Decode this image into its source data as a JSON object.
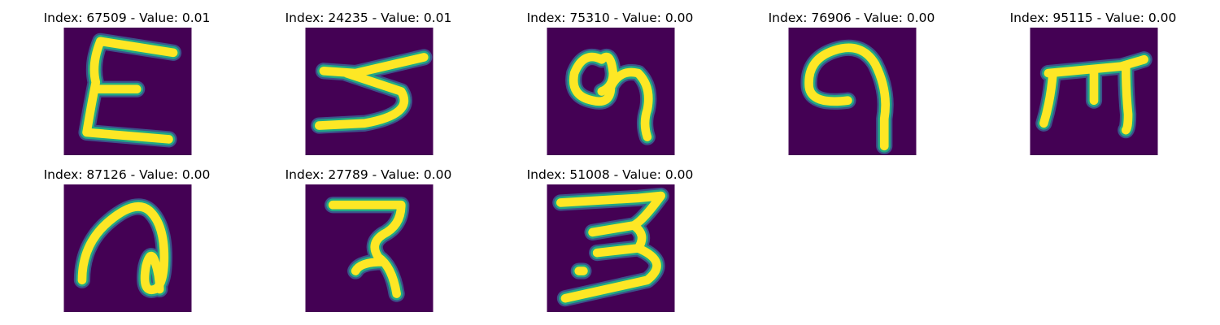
{
  "panels": [
    {
      "title": "Index: 67509 - Value: 0.01",
      "icon": "handwritten-glyph-icon"
    },
    {
      "title": "Index: 24235 - Value: 0.01",
      "icon": "handwritten-glyph-icon"
    },
    {
      "title": "Index: 75310 - Value: 0.00",
      "icon": "handwritten-glyph-icon"
    },
    {
      "title": "Index: 76906 - Value: 0.00",
      "icon": "handwritten-glyph-icon"
    },
    {
      "title": "Index: 95115 - Value: 0.00",
      "icon": "handwritten-glyph-icon"
    },
    {
      "title": "Index: 87126 - Value: 0.00",
      "icon": "handwritten-glyph-icon"
    },
    {
      "title": "Index: 27789 - Value: 0.00",
      "icon": "handwritten-glyph-icon"
    },
    {
      "title": "Index: 51008 - Value: 0.00",
      "icon": "handwritten-glyph-icon"
    }
  ],
  "colors": {
    "background": "#440154",
    "stroke_core": "#fde725",
    "stroke_edge": "#22a884",
    "stroke_halo": "#3b528b"
  }
}
